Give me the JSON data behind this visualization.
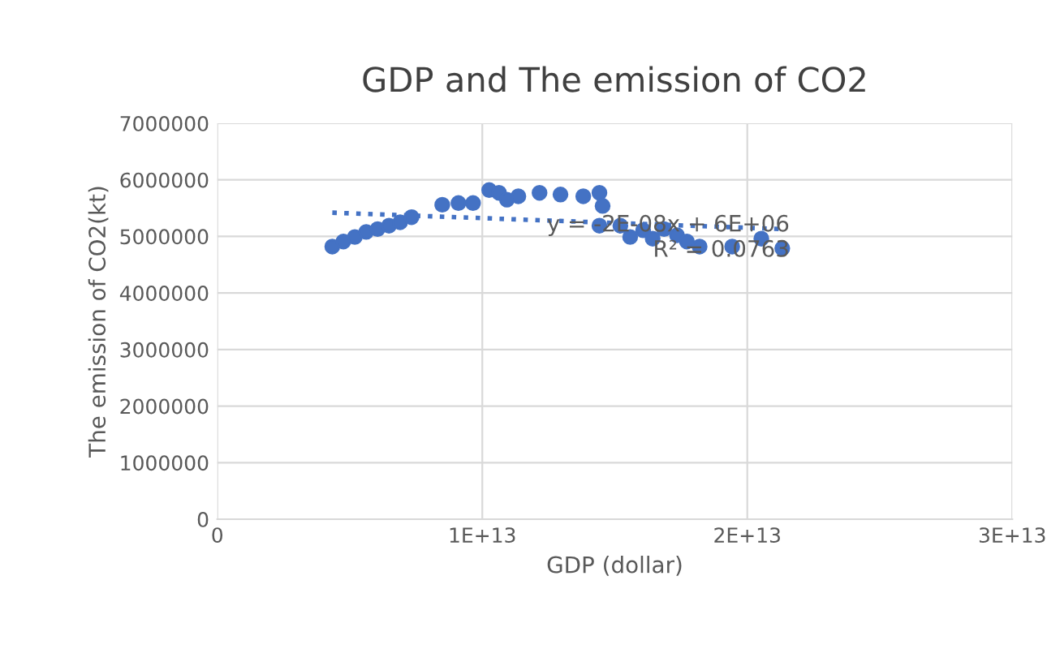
{
  "chart_data": {
    "type": "scatter",
    "title": "GDP and The emission of CO2",
    "xlabel": "GDP (dollar)",
    "ylabel": "The emission of CO2(kt)",
    "xlim": [
      0,
      30000000000000.0
    ],
    "xticks": [
      0,
      {
        "value": 10000000000000.0,
        "label": "1E+13"
      },
      {
        "value": 20000000000000.0,
        "label": "2E+13"
      },
      {
        "value": 30000000000000.0,
        "label": "3E+13"
      }
    ],
    "ylim": [
      0,
      7000000
    ],
    "yticks": [
      0,
      1000000,
      2000000,
      3000000,
      4000000,
      5000000,
      6000000,
      7000000
    ],
    "grid": true,
    "marker": "circle",
    "series": [
      {
        "color": "#4472c4",
        "x": [
          4340000000000.0,
          4760000000000.0,
          5190000000000.0,
          5620000000000.0,
          6050000000000.0,
          6480000000000.0,
          6900000000000.0,
          7330000000000.0,
          8490000000000.0,
          9100000000000.0,
          9650000000000.0,
          10260000000000.0,
          10630000000000.0,
          10930000000000.0,
          11360000000000.0,
          12160000000000.0,
          12950000000000.0,
          13810000000000.0,
          14420000000000.0,
          14540000000000.0,
          14420000000000.0,
          15210000000000.0,
          15580000000000.0,
          16070000000000.0,
          16430000000000.0,
          16860000000000.0,
          17350000000000.0,
          17720000000000.0,
          18200000000000.0,
          19430000000000.0,
          20530000000000.0,
          21320000000000.0
        ],
        "values": [
          4820000,
          4910000,
          4990000,
          5080000,
          5130000,
          5190000,
          5250000,
          5340000,
          5560000,
          5590000,
          5590000,
          5820000,
          5770000,
          5650000,
          5710000,
          5770000,
          5740000,
          5710000,
          5770000,
          5540000,
          5190000,
          5190000,
          4990000,
          5110000,
          4960000,
          5130000,
          5020000,
          4910000,
          4820000,
          4820000,
          4960000,
          4790000
        ]
      },
      {
        "type": "line",
        "color": "#4472c4",
        "line_style": "dotted",
        "marker": "none",
        "x": [
          4340000000000.0,
          21320000000000.0
        ],
        "values": [
          5420000,
          5130000
        ]
      }
    ],
    "annotations": [
      "y = -2E-08x + 6E+06\nR² = 0.0763"
    ]
  }
}
